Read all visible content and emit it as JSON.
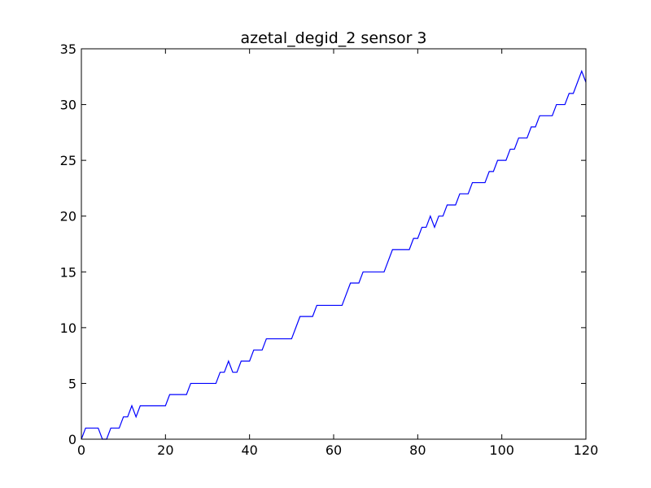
{
  "chart_data": {
    "type": "line",
    "title": "azetal_degid_2 sensor 3",
    "xlabel": "",
    "ylabel": "",
    "xlim": [
      0,
      120
    ],
    "ylim": [
      0,
      35
    ],
    "xticks": [
      0,
      20,
      40,
      60,
      80,
      100,
      120
    ],
    "yticks": [
      0,
      5,
      10,
      15,
      20,
      25,
      30,
      35
    ],
    "grid": false,
    "series": [
      {
        "color": "#0000ff",
        "x": [
          0,
          1,
          2,
          3,
          4,
          5,
          6,
          7,
          8,
          9,
          10,
          11,
          12,
          13,
          14,
          15,
          16,
          17,
          18,
          19,
          20,
          21,
          22,
          23,
          24,
          25,
          26,
          27,
          28,
          29,
          30,
          31,
          32,
          33,
          34,
          35,
          36,
          37,
          38,
          39,
          40,
          41,
          42,
          43,
          44,
          45,
          46,
          47,
          48,
          49,
          50,
          51,
          52,
          53,
          54,
          55,
          56,
          57,
          58,
          59,
          60,
          61,
          62,
          63,
          64,
          65,
          66,
          67,
          68,
          69,
          70,
          71,
          72,
          73,
          74,
          75,
          76,
          77,
          78,
          79,
          80,
          81,
          82,
          83,
          84,
          85,
          86,
          87,
          88,
          89,
          90,
          91,
          92,
          93,
          94,
          95,
          96,
          97,
          98,
          99,
          100,
          101,
          102,
          103,
          104,
          105,
          106,
          107,
          108,
          109,
          110,
          111,
          112,
          113,
          114,
          115,
          116,
          117,
          118,
          119,
          120
        ],
        "y": [
          0,
          1,
          1,
          1,
          1,
          0,
          0,
          1,
          1,
          1,
          2,
          2,
          3,
          2,
          3,
          3,
          3,
          3,
          3,
          3,
          3,
          4,
          4,
          4,
          4,
          4,
          5,
          5,
          5,
          5,
          5,
          5,
          5,
          6,
          6,
          7,
          6,
          6,
          7,
          7,
          7,
          8,
          8,
          8,
          9,
          9,
          9,
          9,
          9,
          9,
          9,
          10,
          11,
          11,
          11,
          11,
          12,
          12,
          12,
          12,
          12,
          12,
          12,
          13,
          14,
          14,
          14,
          15,
          15,
          15,
          15,
          15,
          15,
          16,
          17,
          17,
          17,
          17,
          17,
          18,
          18,
          19,
          19,
          20,
          19,
          20,
          20,
          21,
          21,
          21,
          22,
          22,
          22,
          23,
          23,
          23,
          23,
          24,
          24,
          25,
          25,
          25,
          26,
          26,
          27,
          27,
          27,
          28,
          28,
          29,
          29,
          29,
          29,
          30,
          30,
          30,
          31,
          31,
          32,
          33,
          32
        ]
      }
    ]
  }
}
